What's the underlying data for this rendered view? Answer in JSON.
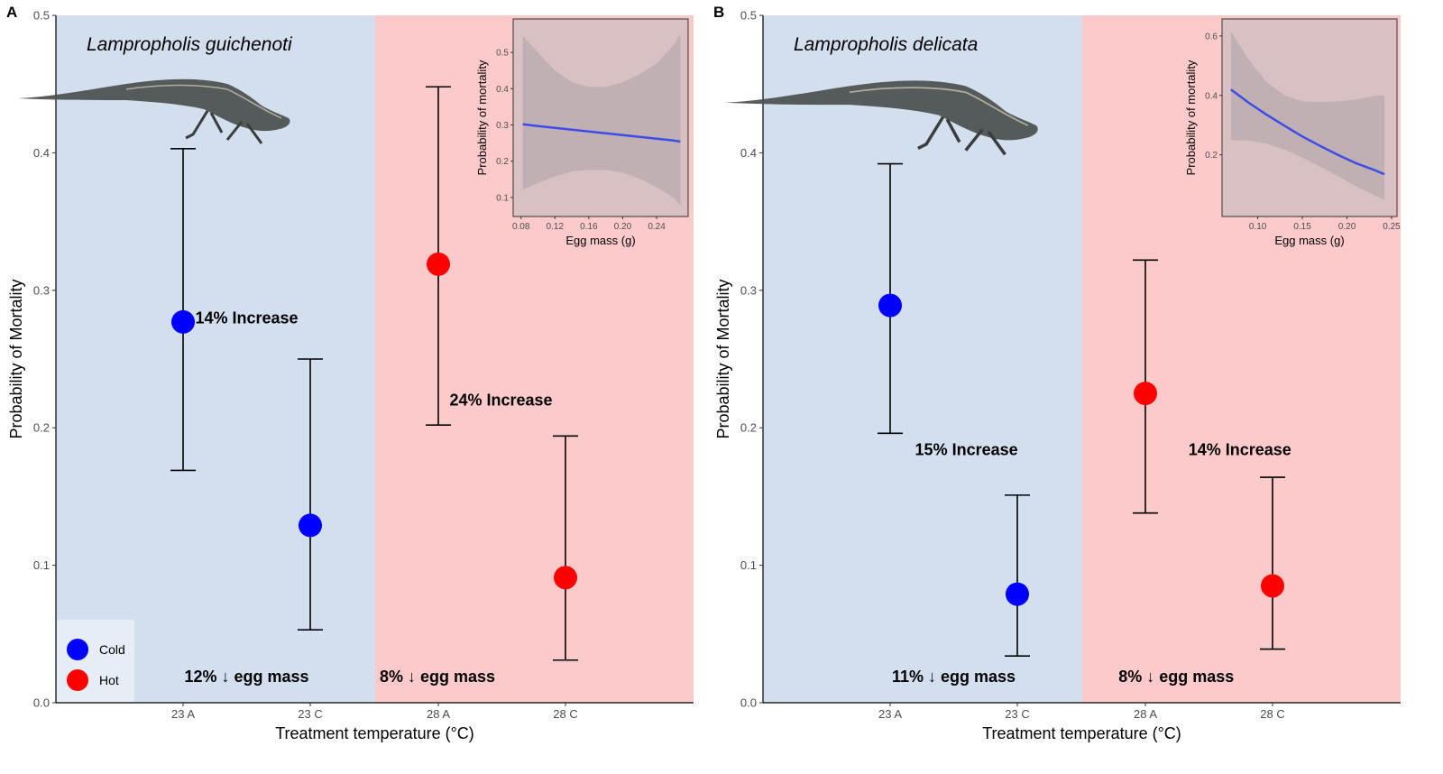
{
  "colors": {
    "cold_bg": "#d3dfee",
    "hot_bg": "#fdcacc",
    "cold_point": "#0000ff",
    "hot_point": "#ff0000",
    "inset_bg": "#d8c0c3",
    "ribbon": "#c1b0b3",
    "fit_line": "#3d4ce6",
    "lizard_body": "#4a4f4d"
  },
  "legend": {
    "entries": [
      {
        "label": "Cold",
        "color": "#0000ff"
      },
      {
        "label": "Hot",
        "color": "#ff0000"
      }
    ]
  },
  "chart_data": [
    {
      "type": "scatter",
      "panel_label": "A",
      "species": "Lampropholis guichenoti",
      "xlabel": "Treatment temperature (°C)",
      "ylabel": "Probability of Mortality",
      "categories": [
        "23 A",
        "23 C",
        "28 A",
        "28 C"
      ],
      "ylim": [
        0,
        0.5
      ],
      "yticks": [
        0.0,
        0.1,
        0.2,
        0.3,
        0.4,
        0.5
      ],
      "ytick_labels": [
        "0.0",
        "0.1",
        "0.2",
        "0.3",
        "0.4",
        "0.5"
      ],
      "points": [
        {
          "x": "23 A",
          "y": 0.277,
          "lower": 0.169,
          "upper": 0.403,
          "group": "Cold"
        },
        {
          "x": "23 C",
          "y": 0.129,
          "lower": 0.053,
          "upper": 0.25,
          "group": "Cold"
        },
        {
          "x": "28 A",
          "y": 0.319,
          "lower": 0.202,
          "upper": 0.448,
          "group": "Hot"
        },
        {
          "x": "28 C",
          "y": 0.091,
          "lower": 0.031,
          "upper": 0.194,
          "group": "Hot"
        }
      ],
      "annotations": [
        {
          "text": "14% Increase",
          "x": 1.5,
          "y": 0.28
        },
        {
          "text": "24% Increase",
          "x": 3.5,
          "y": 0.22
        },
        {
          "text": "12% ↓ egg mass",
          "x": 1.5,
          "y": 0.019
        },
        {
          "text": "8% ↓ egg mass",
          "x": 3.0,
          "y": 0.019
        }
      ],
      "show_legend": true,
      "legend_position": "bottom-left",
      "inset": {
        "type": "line",
        "xlabel": "Egg mass (g)",
        "ylabel": "Probability of mortality",
        "xlim": [
          0.075,
          0.274
        ],
        "ylim": [
          0.07,
          0.57
        ],
        "xticks": [
          0.08,
          0.12,
          0.16,
          0.2,
          0.24
        ],
        "xtick_labels": [
          "0.08",
          "0.12",
          "0.16",
          "0.20",
          "0.24"
        ],
        "yticks": [
          0.1,
          0.2,
          0.3,
          0.4,
          0.5
        ],
        "ytick_labels": [
          "0.1",
          "0.2",
          "0.3",
          "0.4",
          "0.5"
        ],
        "x": [
          0.082,
          0.1,
          0.12,
          0.14,
          0.16,
          0.18,
          0.2,
          0.22,
          0.24,
          0.26,
          0.268
        ],
        "fit": [
          0.302,
          0.297,
          0.292,
          0.287,
          0.282,
          0.277,
          0.272,
          0.267,
          0.262,
          0.257,
          0.254
        ],
        "lower": [
          0.122,
          0.14,
          0.158,
          0.172,
          0.176,
          0.176,
          0.168,
          0.152,
          0.128,
          0.1,
          0.077
        ],
        "upper": [
          0.545,
          0.5,
          0.45,
          0.418,
          0.405,
          0.405,
          0.418,
          0.44,
          0.47,
          0.52,
          0.55
        ]
      }
    },
    {
      "type": "scatter",
      "panel_label": "B",
      "species": "Lampropholis delicata",
      "xlabel": "Treatment temperature (°C)",
      "ylabel": "Probability of Mortality",
      "categories": [
        "23 A",
        "23 C",
        "28 A",
        "28 C"
      ],
      "ylim": [
        0,
        0.5
      ],
      "yticks": [
        0.0,
        0.1,
        0.2,
        0.3,
        0.4,
        0.5
      ],
      "ytick_labels": [
        "0.0",
        "0.1",
        "0.2",
        "0.3",
        "0.4",
        "0.5"
      ],
      "points": [
        {
          "x": "23 A",
          "y": 0.289,
          "lower": 0.196,
          "upper": 0.392,
          "group": "Cold"
        },
        {
          "x": "23 C",
          "y": 0.079,
          "lower": 0.034,
          "upper": 0.151,
          "group": "Cold"
        },
        {
          "x": "28 A",
          "y": 0.225,
          "lower": 0.138,
          "upper": 0.322,
          "group": "Hot"
        },
        {
          "x": "28 C",
          "y": 0.085,
          "lower": 0.039,
          "upper": 0.164,
          "group": "Hot"
        }
      ],
      "annotations": [
        {
          "text": "15% Increase",
          "x": 1.6,
          "y": 0.184
        },
        {
          "text": "14% Increase",
          "x": 3.75,
          "y": 0.184
        },
        {
          "text": "11% ↓ egg mass",
          "x": 1.5,
          "y": 0.019
        },
        {
          "text": "8% ↓ egg mass",
          "x": 3.25,
          "y": 0.019
        }
      ],
      "show_legend": false,
      "inset": {
        "type": "line",
        "xlabel": "Egg mass (g)",
        "ylabel": "Probability of mortality",
        "xlim": [
          0.062,
          0.25
        ],
        "ylim": [
          0.02,
          0.63
        ],
        "xticks": [
          0.1,
          0.15,
          0.2,
          0.25
        ],
        "xtick_labels": [
          "0.10",
          "0.15",
          "0.20",
          "0.25"
        ],
        "yticks": [
          0.2,
          0.4,
          0.6
        ],
        "ytick_labels": [
          "0.2",
          "0.4",
          "0.6"
        ],
        "x": [
          0.07,
          0.09,
          0.11,
          0.13,
          0.15,
          0.17,
          0.19,
          0.21,
          0.23,
          0.242
        ],
        "fit": [
          0.42,
          0.375,
          0.335,
          0.298,
          0.262,
          0.23,
          0.2,
          0.172,
          0.15,
          0.135
        ],
        "lower": [
          0.25,
          0.248,
          0.238,
          0.218,
          0.19,
          0.16,
          0.128,
          0.095,
          0.065,
          0.048
        ],
        "upper": [
          0.615,
          0.52,
          0.445,
          0.4,
          0.38,
          0.378,
          0.38,
          0.386,
          0.398,
          0.4
        ]
      }
    }
  ]
}
